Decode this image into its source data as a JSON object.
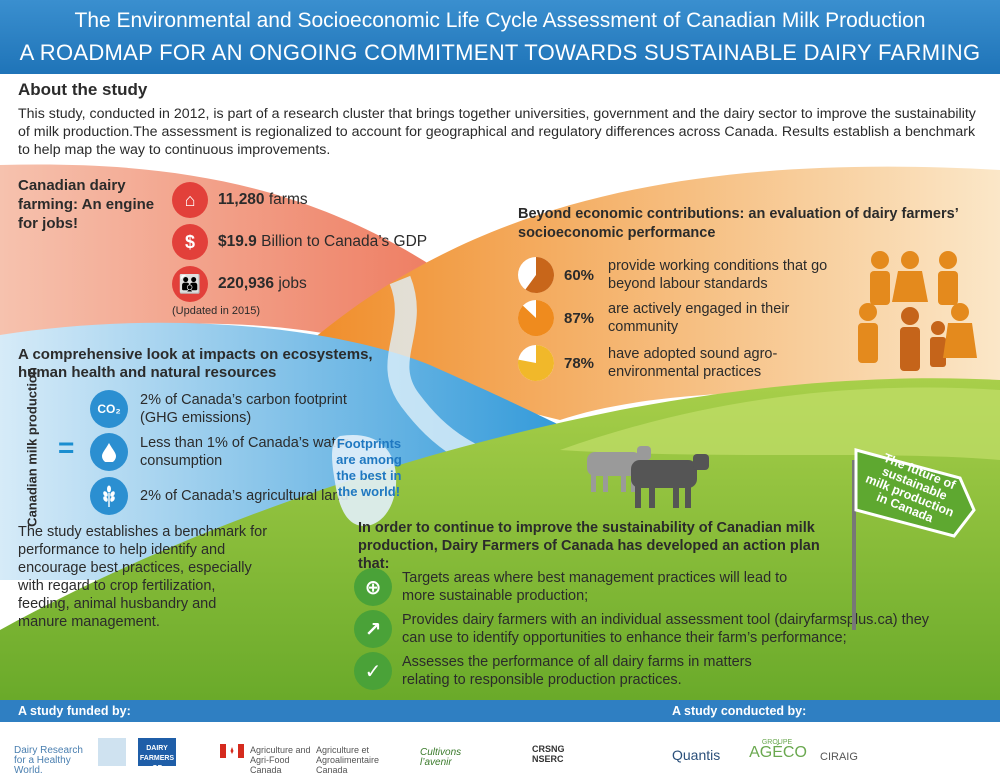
{
  "header": {
    "title": "The Environmental and Socioeconomic Life Cycle Assessment of Canadian Milk Production",
    "subtitle": "A ROADMAP FOR AN ONGOING COMMITMENT TOWARDS SUSTAINABLE DAIRY FARMING"
  },
  "about": {
    "heading": "About the study",
    "text": "This study, conducted in 2012, is part of a research cluster that brings together universities, government and the dairy sector to improve the sustainability of milk production.The assessment is regionalized to account for geographical and regulatory differences across Canada. Results establish a benchmark to help map the way to continuous improvements."
  },
  "jobs": {
    "title": "Canadian dairy farming: An engine for jobs!",
    "stats": [
      {
        "value": "11,280",
        "label": " farms",
        "icon": "barn-icon"
      },
      {
        "value": "$19.9",
        "label": " Billion to Canada’s GDP",
        "icon": "dollar-icon"
      },
      {
        "value": "220,936",
        "label": " jobs",
        "icon": "people-icon"
      }
    ],
    "updated": "(Updated in 2015)"
  },
  "socio": {
    "title": "Beyond economic contributions: an evaluation of dairy farmers’ socioeconomic performance",
    "items": [
      {
        "pct": "60%",
        "value": 0.6,
        "desc": "provide working conditions that go beyond labour standards",
        "color": "#c8661a"
      },
      {
        "pct": "87%",
        "value": 0.87,
        "desc": "are actively engaged in their community",
        "color": "#ef8b1e"
      },
      {
        "pct": "78%",
        "value": 0.78,
        "desc": "have adopted sound agro-environmental practices",
        "color": "#f1b82a"
      }
    ]
  },
  "impacts": {
    "title": "A comprehensive look at impacts on ecosystems, human health and natural resources",
    "vertical_label": "Canadian milk production",
    "equals": "=",
    "items": [
      {
        "desc": "2% of Canada’s carbon footprint (GHG emissions)",
        "icon": "co2-icon",
        "icon_text": "CO₂"
      },
      {
        "desc": "Less than 1% of Canada’s water consumption",
        "icon": "water-drop-icon",
        "icon_text": ""
      },
      {
        "desc": "2% of Canada’s agricultural land",
        "icon": "wheat-icon",
        "icon_text": ""
      }
    ],
    "footprint_text": "Footprints are among the best in the world!",
    "benchmark": "The study establishes a benchmark for performance to help identify and encourage best practices, especially with regard to crop fertilization, feeding, animal husbandry and manure management."
  },
  "plan": {
    "title": "In order to continue to improve the sustainability of Canadian milk production, Dairy Farmers of Canada has developed an action plan that:",
    "items": [
      {
        "desc": "Targets areas where best management practices will lead to more sustainable production;",
        "icon": "magnifier-plus-icon"
      },
      {
        "desc": "Provides dairy farmers with an individual assessment tool (dairyfarmsplus.ca) they can use to identify opportunities to enhance their farm’s performance;",
        "icon": "chart-icon"
      },
      {
        "desc": "Assesses the performance of all dairy farms in matters relating to responsible production practices.",
        "icon": "checkmark-icon"
      }
    ],
    "sign": "The future of sustainable milk production in Canada"
  },
  "footer": {
    "funded_by": "A study funded by:",
    "conducted_by": "A study conducted by:",
    "logos": {
      "dairy_research": "Dairy Research for a Healthy World.",
      "dairy_farmers": "DAIRY FARMERS OF CANADA",
      "aafc_en": "Agriculture and Agri-Food Canada",
      "aafc_fr": "Agriculture et Agroalimentaire Canada",
      "cultivons": "Cultivons l’avenir",
      "crsng": "CRSNG NSERC",
      "quantis": "Quantis",
      "ageco_top": "GROUPE",
      "ageco": "AGÉCO",
      "ciraig": "CIRAIG"
    }
  }
}
